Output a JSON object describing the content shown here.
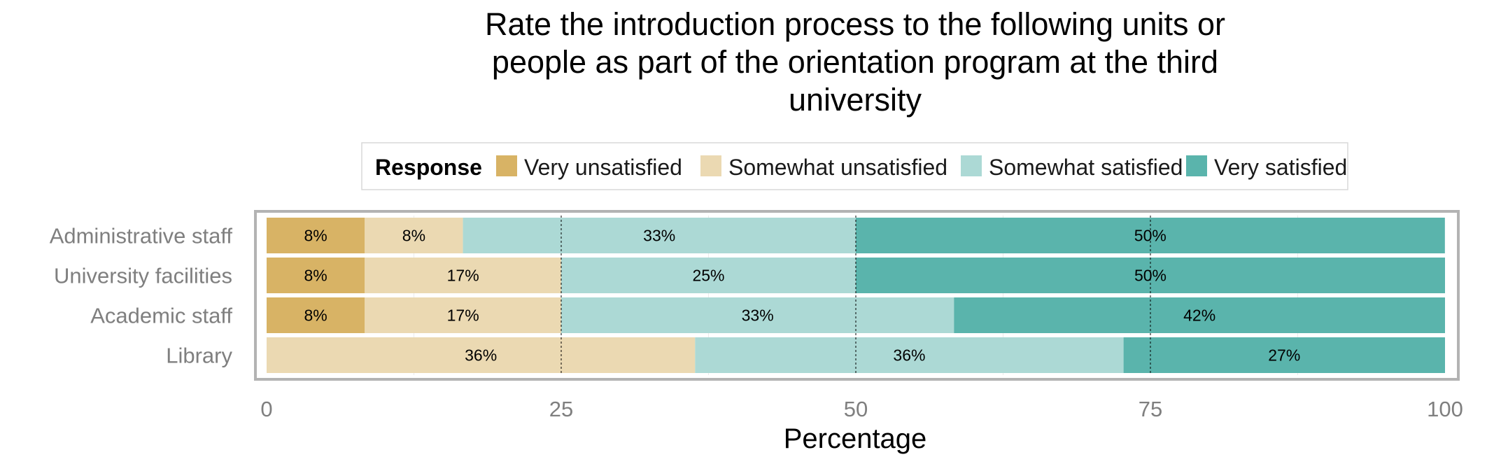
{
  "chart_data": {
    "type": "bar",
    "orientation": "horizontal",
    "stacked": true,
    "title_lines": [
      "Rate the introduction process to the following units or",
      "people as part of the orientation program at the third",
      "university"
    ],
    "xlabel": "Percentage",
    "ylabel": "",
    "xlim": [
      0,
      100
    ],
    "x_ticks": [
      "0",
      "25",
      "50",
      "75",
      "100"
    ],
    "legend": {
      "title": "Response",
      "position": "top"
    },
    "categories": [
      "Administrative staff",
      "University facilities",
      "Academic staff",
      "Library"
    ],
    "series": [
      {
        "name": "Very unsatisfied",
        "color": "#d8b365",
        "values": [
          8.33,
          8.33,
          8.33,
          0
        ],
        "labels": [
          "8%",
          "8%",
          "8%",
          ""
        ]
      },
      {
        "name": "Somewhat unsatisfied",
        "color": "#ebd9b2",
        "values": [
          8.33,
          16.67,
          16.67,
          36.36
        ],
        "labels": [
          "8%",
          "17%",
          "17%",
          "36%"
        ]
      },
      {
        "name": "Somewhat satisfied",
        "color": "#acd9d5",
        "values": [
          33.33,
          25,
          33.33,
          36.36
        ],
        "labels": [
          "33%",
          "25%",
          "33%",
          "36%"
        ]
      },
      {
        "name": "Very satisfied",
        "color": "#5ab4ac",
        "values": [
          50,
          50,
          41.67,
          27.28
        ],
        "labels": [
          "50%",
          "50%",
          "42%",
          "27%"
        ]
      }
    ],
    "grid": true
  }
}
